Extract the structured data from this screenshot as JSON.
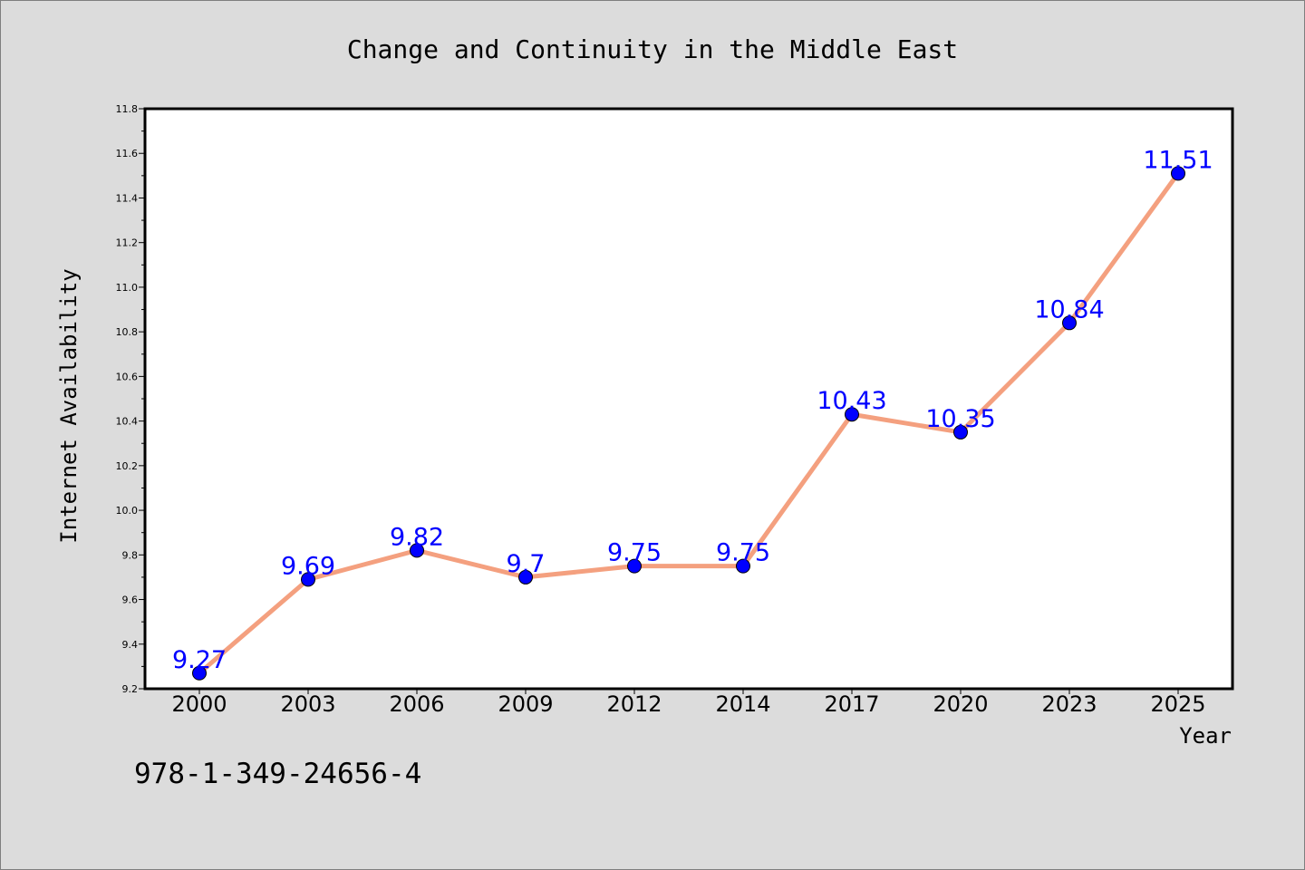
{
  "chart_data": {
    "type": "line",
    "title": "Change and Continuity in the Middle East",
    "xlabel": "Year",
    "ylabel": "Internet Availability",
    "categories": [
      "2000",
      "2003",
      "2006",
      "2009",
      "2012",
      "2014",
      "2017",
      "2020",
      "2023",
      "2025"
    ],
    "series": [
      {
        "values": [
          9.27,
          9.69,
          9.82,
          9.7,
          9.75,
          9.75,
          10.43,
          10.35,
          10.84,
          11.51
        ],
        "labels": [
          "9.27",
          "9.69",
          "9.82",
          "9.7",
          "9.75",
          "9.75",
          "10.43",
          "10.35",
          "10.84",
          "11.51"
        ]
      }
    ],
    "ylim": [
      9.2,
      11.8
    ],
    "yticks": [
      "9.2",
      "9.4",
      "9.6",
      "9.8",
      "10.0",
      "10.2",
      "10.4",
      "10.6",
      "10.8",
      "11.0",
      "11.2",
      "11.4",
      "11.6",
      "11.8"
    ],
    "grid": false,
    "legend": "none",
    "colors": {
      "line": "#f4a07f",
      "marker": "#0000ff",
      "data_label": "#0000ff",
      "background": "#dcdcdc",
      "plot_background": "#ffffff"
    }
  },
  "footer": {
    "isbn": "978-1-349-24656-4"
  }
}
